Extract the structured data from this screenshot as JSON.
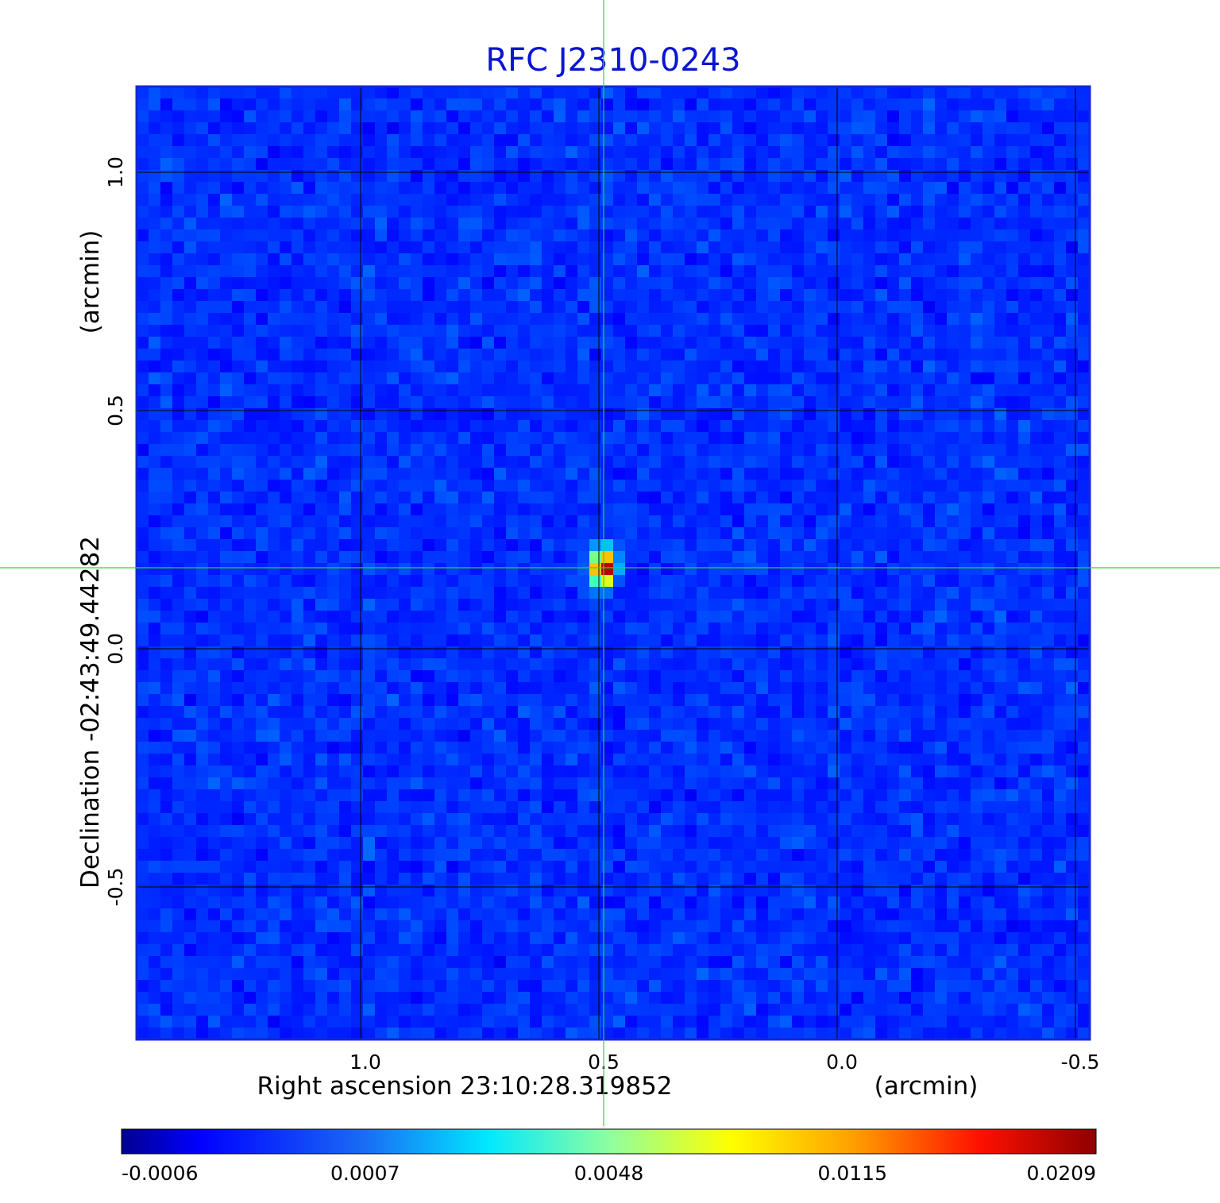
{
  "chart_data": {
    "type": "heatmap",
    "title": "RFC J2310-0243",
    "xlabel": "Right ascension  23:10:28.319852",
    "xunit": "(arcmin)",
    "ylabel": "Declination  -02:43:49.44282",
    "yunit": "(arcmin)",
    "xlim": [
      1.47,
      -0.53
    ],
    "ylim": [
      -0.82,
      1.18
    ],
    "x_ticks": [
      1.0,
      0.5,
      0.0,
      -0.5
    ],
    "y_ticks": [
      -0.5,
      0.0,
      0.5,
      1.0
    ],
    "x_tick_labels": [
      "1.0",
      "0.5",
      "0.0",
      "-0.5"
    ],
    "y_tick_labels": [
      "-0.5",
      "0.0",
      "0.5",
      "1.0"
    ],
    "grid": true,
    "source_peak": {
      "x": 0.49,
      "y": 0.17
    },
    "crosshair": {
      "x": 0.49,
      "y": 0.17
    },
    "colormap": "jet",
    "colorbar": {
      "ticks": [
        -0.0006,
        0.0007,
        0.0048,
        0.0115,
        0.0209
      ],
      "tick_labels": [
        "-0.0006",
        "0.0007",
        "0.0048",
        "0.0115",
        "0.0209"
      ],
      "placement": "bottom"
    },
    "colors": {
      "title": "#0a14d2",
      "frame": "#1428d0",
      "grid": "#000000",
      "crosshair": "#22e022",
      "background_field": "#1f5df0"
    }
  }
}
